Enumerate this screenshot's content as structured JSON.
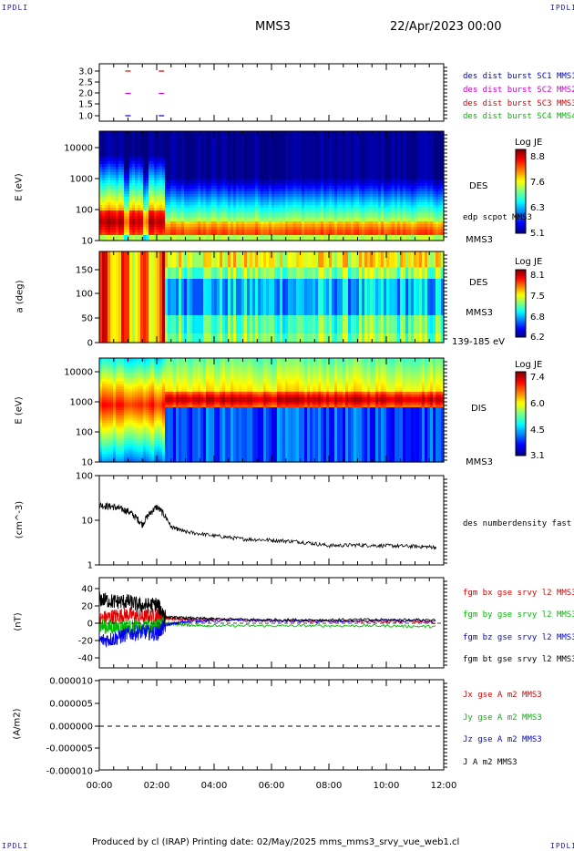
{
  "header": {
    "corner_left": "IPDLI",
    "corner_right": "IPDLI",
    "spacecraft": "MMS3",
    "date": "22/Apr/2023 00:00"
  },
  "footer": {
    "text": "Produced by cl (IRAP)   Printing date: 02/May/2025   mms_mms3_srvy_vue_web1.cl",
    "corner_left": "IPDLI",
    "corner_right": "IPDLI"
  },
  "colors": {
    "mms1": "#0000cc",
    "mms2": "#cc00cc",
    "mms3": "#dd0000",
    "mms4": "#00bb00",
    "bz": "#0000ee",
    "bt": "#000000"
  },
  "x_axis": {
    "ticks": [
      "00:00",
      "02:00",
      "04:00",
      "06:00",
      "08:00",
      "10:00",
      "12:00"
    ]
  },
  "panels": {
    "burst": {
      "yticks": [
        "3.0",
        "2.5",
        "2.0",
        "1.5",
        "1.0"
      ],
      "legend": [
        "des dist burst SC1 MMS1",
        "des dist burst SC2 MMS2",
        "des dist burst SC3 MMS3",
        "des dist burst SC4 MMS4"
      ]
    },
    "des_energy": {
      "ylabel": "E (eV)",
      "yticks": [
        "10000",
        "1000",
        "100",
        "10"
      ],
      "species": "DES",
      "probe": "MMS3",
      "overlay_label": "edp scpot MMS3",
      "colorbar": {
        "title": "Log JE",
        "ticks": [
          "8.8",
          "7.6",
          "6.3",
          "5.1"
        ]
      }
    },
    "des_pitch": {
      "ylabel": "a (deg)",
      "yticks": [
        "150",
        "100",
        "50",
        "0"
      ],
      "species": "DES",
      "probe": "MMS3",
      "energy_range": "139-185 eV",
      "colorbar": {
        "title": "Log JE",
        "ticks": [
          "8.1",
          "7.5",
          "6.8",
          "6.2"
        ]
      }
    },
    "dis_energy": {
      "ylabel": "E (eV)",
      "yticks": [
        "10000",
        "1000",
        "100",
        "10"
      ],
      "species": "DIS",
      "probe": "MMS3",
      "colorbar": {
        "title": "Log JE",
        "ticks": [
          "7.4",
          "6.0",
          "4.5",
          "3.1"
        ]
      }
    },
    "density": {
      "ylabel": "(cm^-3)",
      "yticks": [
        "100",
        "10",
        "1"
      ],
      "legend": "des numberdensity fast M"
    },
    "bfield": {
      "ylabel": "(nT)",
      "yticks": [
        "40",
        "20",
        "0",
        "-20",
        "-40"
      ],
      "legend": [
        "fgm bx gse srvy l2 MMS3",
        "fgm by gse srvy l2 MMS3",
        "fgm bz gse srvy l2 MMS3",
        "fgm bt gse srvy l2 MMS3"
      ]
    },
    "current": {
      "ylabel": "(A/m2)",
      "yticks": [
        "0.000010",
        "0.000005",
        "0.000000",
        "-0.000005",
        "-0.000010"
      ],
      "legend": [
        "Jx gse A m2 MMS3",
        "Jy gse A m2 MMS3",
        "Jz gse A m2 MMS3",
        "J A m2 MMS3"
      ]
    }
  },
  "chart_data": [
    {
      "type": "scatter",
      "title": "MMS3",
      "xlabel": "",
      "ylabel": "",
      "x_range": [
        "00:00",
        "12:00"
      ],
      "ylim": [
        0.8,
        3.2
      ],
      "series": [
        {
          "name": "des dist burst SC1 MMS1",
          "x": [
            "01:00",
            "02:10"
          ],
          "values": [
            1.0,
            1.0
          ]
        },
        {
          "name": "des dist burst SC2 MMS2",
          "x": [
            "01:00",
            "02:10"
          ],
          "values": [
            2.0,
            2.0
          ]
        },
        {
          "name": "des dist burst SC3 MMS3",
          "x": [
            "01:00",
            "02:10"
          ],
          "values": [
            3.0,
            3.0
          ]
        }
      ]
    },
    {
      "type": "heatmap",
      "ylabel": "E (eV)",
      "y_scale": "log",
      "ylim": [
        10,
        30000
      ],
      "x_range": [
        "00:00",
        "12:00"
      ],
      "colorbar_range": [
        5.1,
        8.8
      ],
      "legend_entries": [
        "DES",
        "MMS3"
      ]
    },
    {
      "type": "heatmap",
      "ylabel": "a (deg)",
      "ylim": [
        0,
        180
      ],
      "x_range": [
        "00:00",
        "12:00"
      ],
      "colorbar_range": [
        6.2,
        8.1
      ],
      "legend_entries": [
        "DES",
        "MMS3",
        "139-185 eV"
      ]
    },
    {
      "type": "heatmap",
      "ylabel": "E (eV)",
      "y_scale": "log",
      "ylim": [
        10,
        30000
      ],
      "x_range": [
        "00:00",
        "12:00"
      ],
      "colorbar_range": [
        3.1,
        7.4
      ],
      "legend_entries": [
        "DIS",
        "MMS3"
      ]
    },
    {
      "type": "line",
      "ylabel": "(cm^-3)",
      "y_scale": "log",
      "ylim": [
        1,
        100
      ],
      "x": [
        "00:00",
        "00:30",
        "01:00",
        "01:30",
        "02:00",
        "02:30",
        "03:00",
        "04:00",
        "05:00",
        "06:00",
        "07:00",
        "08:00",
        "09:00",
        "10:00",
        "11:00",
        "11:45"
      ],
      "series": [
        {
          "name": "des numberdensity fast M",
          "values": [
            22,
            20,
            16,
            8,
            20,
            7,
            5.5,
            4.5,
            3.8,
            3.6,
            3.3,
            2.7,
            2.8,
            2.7,
            2.6,
            2.5
          ]
        }
      ]
    },
    {
      "type": "line",
      "ylabel": "(nT)",
      "ylim": [
        -48,
        48
      ],
      "x": [
        "00:00",
        "00:30",
        "01:00",
        "01:30",
        "02:00",
        "02:20",
        "03:00",
        "04:00",
        "06:00",
        "08:00",
        "10:00",
        "11:45"
      ],
      "series": [
        {
          "name": "fgm bx gse srvy l2 MMS3",
          "values": [
            5,
            8,
            10,
            7,
            9,
            5,
            5,
            4,
            3,
            2,
            2,
            1
          ]
        },
        {
          "name": "fgm by gse srvy l2 MMS3",
          "values": [
            -3,
            -5,
            -4,
            -6,
            -3,
            0,
            -2,
            -3,
            -3,
            -3,
            -3,
            -4
          ]
        },
        {
          "name": "fgm bz gse srvy l2 MMS3",
          "values": [
            -20,
            -18,
            -12,
            -10,
            -12,
            -2,
            2,
            3,
            3,
            2,
            3,
            2
          ]
        },
        {
          "name": "fgm bt gse srvy l2 MMS3",
          "values": [
            28,
            25,
            25,
            20,
            22,
            7,
            6,
            5,
            4,
            4,
            4,
            4
          ]
        }
      ]
    },
    {
      "type": "line",
      "ylabel": "(A/m2)",
      "ylim": [
        -1e-05,
        1e-05
      ],
      "x": [
        "00:00",
        "12:00"
      ],
      "series": [
        {
          "name": "",
          "values": [
            0,
            0
          ]
        }
      ]
    }
  ]
}
